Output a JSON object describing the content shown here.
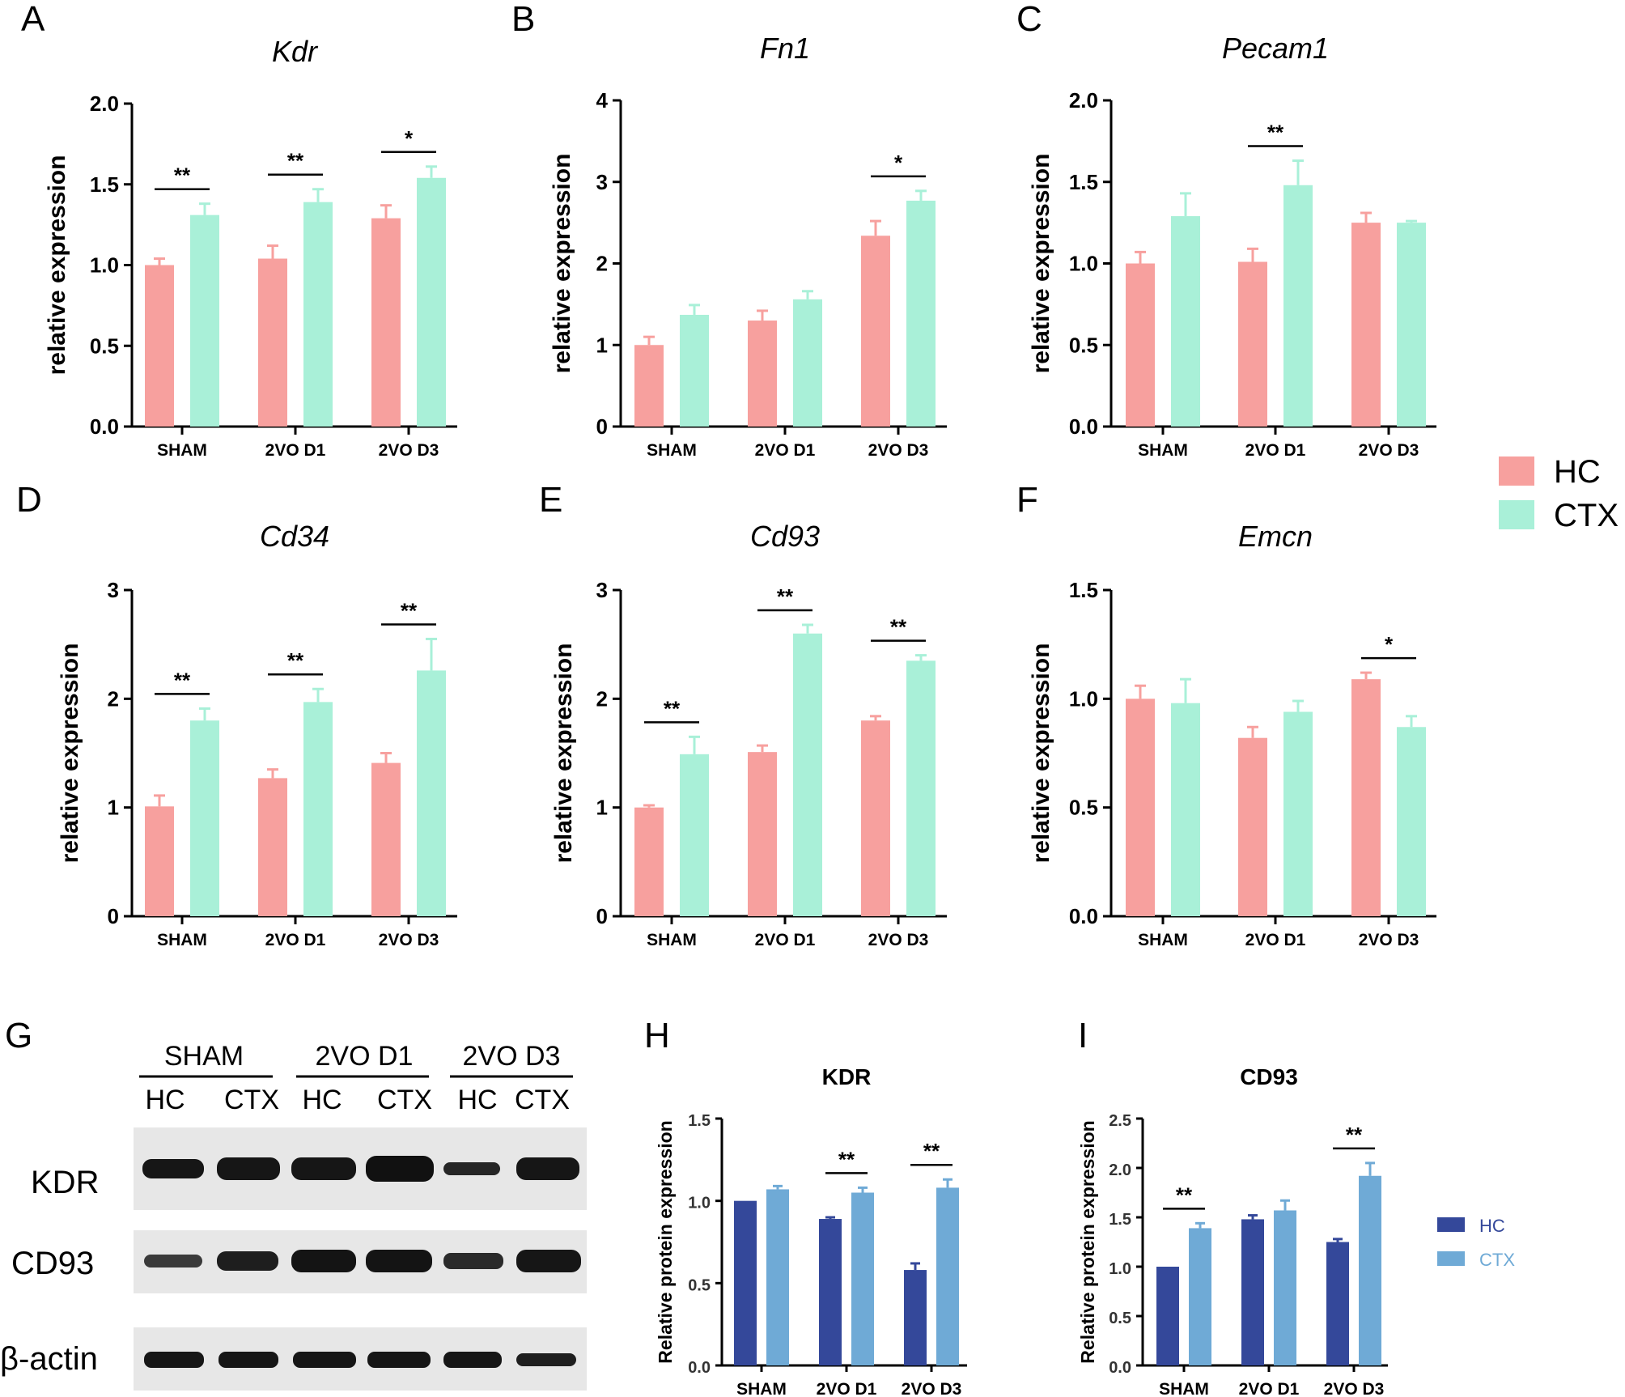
{
  "legend_main": [
    {
      "label": "HC",
      "color": "#f7a09e"
    },
    {
      "label": "CTX",
      "color": "#a9f0d8"
    }
  ],
  "legend_protein": [
    {
      "label": "HC",
      "color": "#34489a"
    },
    {
      "label": "CTX",
      "color": "#6faad6"
    }
  ],
  "blot": {
    "panel": "G",
    "groups": [
      "SHAM",
      "2VO D1",
      "2VO D3"
    ],
    "lanes": [
      "HC",
      "CTX",
      "HC",
      "CTX",
      "HC",
      "CTX"
    ],
    "rows": [
      "KDR",
      "CD93",
      "β-actin"
    ]
  },
  "chart_data": [
    {
      "panel": "A",
      "type": "bar",
      "title": "Kdr",
      "ylabel": "relative expression",
      "categories": [
        "SHAM",
        "2VO D1",
        "2VO D3"
      ],
      "ylim": [
        0,
        2.0
      ],
      "yticks": [
        "0.0",
        "0.5",
        "1.0",
        "1.5",
        "2.0"
      ],
      "series": [
        {
          "name": "HC",
          "values": [
            1.0,
            1.04,
            1.29
          ],
          "errors": [
            0.04,
            0.08,
            0.08
          ]
        },
        {
          "name": "CTX",
          "values": [
            1.31,
            1.39,
            1.54
          ],
          "errors": [
            0.07,
            0.08,
            0.07
          ]
        }
      ],
      "significance": [
        "**",
        "**",
        "*"
      ]
    },
    {
      "panel": "B",
      "type": "bar",
      "title": "Fn1",
      "ylabel": "relative expression",
      "categories": [
        "SHAM",
        "2VO D1",
        "2VO D3"
      ],
      "ylim": [
        0,
        4
      ],
      "yticks": [
        "0",
        "1",
        "2",
        "3",
        "4"
      ],
      "series": [
        {
          "name": "HC",
          "values": [
            1.0,
            1.3,
            2.34
          ],
          "errors": [
            0.1,
            0.12,
            0.18
          ]
        },
        {
          "name": "CTX",
          "values": [
            1.37,
            1.56,
            2.77
          ],
          "errors": [
            0.12,
            0.1,
            0.12
          ]
        }
      ],
      "significance": [
        "",
        "",
        "*"
      ]
    },
    {
      "panel": "C",
      "type": "bar",
      "title": "Pecam1",
      "ylabel": "relative expression",
      "categories": [
        "SHAM",
        "2VO D1",
        "2VO D3"
      ],
      "ylim": [
        0,
        2.0
      ],
      "yticks": [
        "0.0",
        "0.5",
        "1.0",
        "1.5",
        "2.0"
      ],
      "series": [
        {
          "name": "HC",
          "values": [
            1.0,
            1.01,
            1.25
          ],
          "errors": [
            0.07,
            0.08,
            0.06
          ]
        },
        {
          "name": "CTX",
          "values": [
            1.29,
            1.48,
            1.25
          ],
          "errors": [
            0.14,
            0.15,
            0.01
          ]
        }
      ],
      "significance": [
        "",
        "**",
        ""
      ]
    },
    {
      "panel": "D",
      "type": "bar",
      "title": "Cd34",
      "ylabel": "relative expression",
      "categories": [
        "SHAM",
        "2VO D1",
        "2VO D3"
      ],
      "ylim": [
        0,
        3
      ],
      "yticks": [
        "0",
        "1",
        "2",
        "3"
      ],
      "series": [
        {
          "name": "HC",
          "values": [
            1.01,
            1.27,
            1.41
          ],
          "errors": [
            0.1,
            0.08,
            0.09
          ]
        },
        {
          "name": "CTX",
          "values": [
            1.8,
            1.97,
            2.26
          ],
          "errors": [
            0.11,
            0.12,
            0.29
          ]
        }
      ],
      "significance": [
        "**",
        "**",
        "**"
      ]
    },
    {
      "panel": "E",
      "type": "bar",
      "title": "Cd93",
      "ylabel": "relative expression",
      "categories": [
        "SHAM",
        "2VO D1",
        "2VO D3"
      ],
      "ylim": [
        0,
        3
      ],
      "yticks": [
        "0",
        "1",
        "2",
        "3"
      ],
      "series": [
        {
          "name": "HC",
          "values": [
            1.0,
            1.51,
            1.8
          ],
          "errors": [
            0.02,
            0.06,
            0.04
          ]
        },
        {
          "name": "CTX",
          "values": [
            1.49,
            2.6,
            2.35
          ],
          "errors": [
            0.16,
            0.08,
            0.05
          ]
        }
      ],
      "significance": [
        "**",
        "**",
        "**"
      ]
    },
    {
      "panel": "F",
      "type": "bar",
      "title": "Emcn",
      "ylabel": "relative expression",
      "categories": [
        "SHAM",
        "2VO D1",
        "2VO D3"
      ],
      "ylim": [
        0,
        1.5
      ],
      "yticks": [
        "0.0",
        "0.5",
        "1.0",
        "1.5"
      ],
      "series": [
        {
          "name": "HC",
          "values": [
            1.0,
            0.82,
            1.09
          ],
          "errors": [
            0.06,
            0.05,
            0.03
          ]
        },
        {
          "name": "CTX",
          "values": [
            0.98,
            0.94,
            0.87
          ],
          "errors": [
            0.11,
            0.05,
            0.05
          ]
        }
      ],
      "significance": [
        "",
        "",
        "*"
      ]
    },
    {
      "panel": "H",
      "type": "bar",
      "title": "KDR",
      "ylabel": "Relative protein expression",
      "categories": [
        "SHAM",
        "2VO D1",
        "2VO D3"
      ],
      "ylim": [
        0,
        1.5
      ],
      "yticks": [
        "0.0",
        "0.5",
        "1.0",
        "1.5"
      ],
      "series": [
        {
          "name": "HC",
          "values": [
            1.0,
            0.89,
            0.58
          ],
          "errors": [
            0.0,
            0.01,
            0.04
          ]
        },
        {
          "name": "CTX",
          "values": [
            1.07,
            1.05,
            1.08
          ],
          "errors": [
            0.02,
            0.03,
            0.05
          ]
        }
      ],
      "significance": [
        "",
        "**",
        "**"
      ]
    },
    {
      "panel": "I",
      "type": "bar",
      "title": "CD93",
      "ylabel": "Relative protein expression",
      "categories": [
        "SHAM",
        "2VO D1",
        "2VO D3"
      ],
      "ylim": [
        0,
        2.5
      ],
      "yticks": [
        "0.0",
        "0.5",
        "1.0",
        "1.5",
        "2.0",
        "2.5"
      ],
      "series": [
        {
          "name": "HC",
          "values": [
            1.0,
            1.48,
            1.25
          ],
          "errors": [
            0.0,
            0.04,
            0.03
          ]
        },
        {
          "name": "CTX",
          "values": [
            1.39,
            1.57,
            1.92
          ],
          "errors": [
            0.05,
            0.1,
            0.13
          ]
        }
      ],
      "significance": [
        "**",
        "",
        "**"
      ]
    }
  ]
}
